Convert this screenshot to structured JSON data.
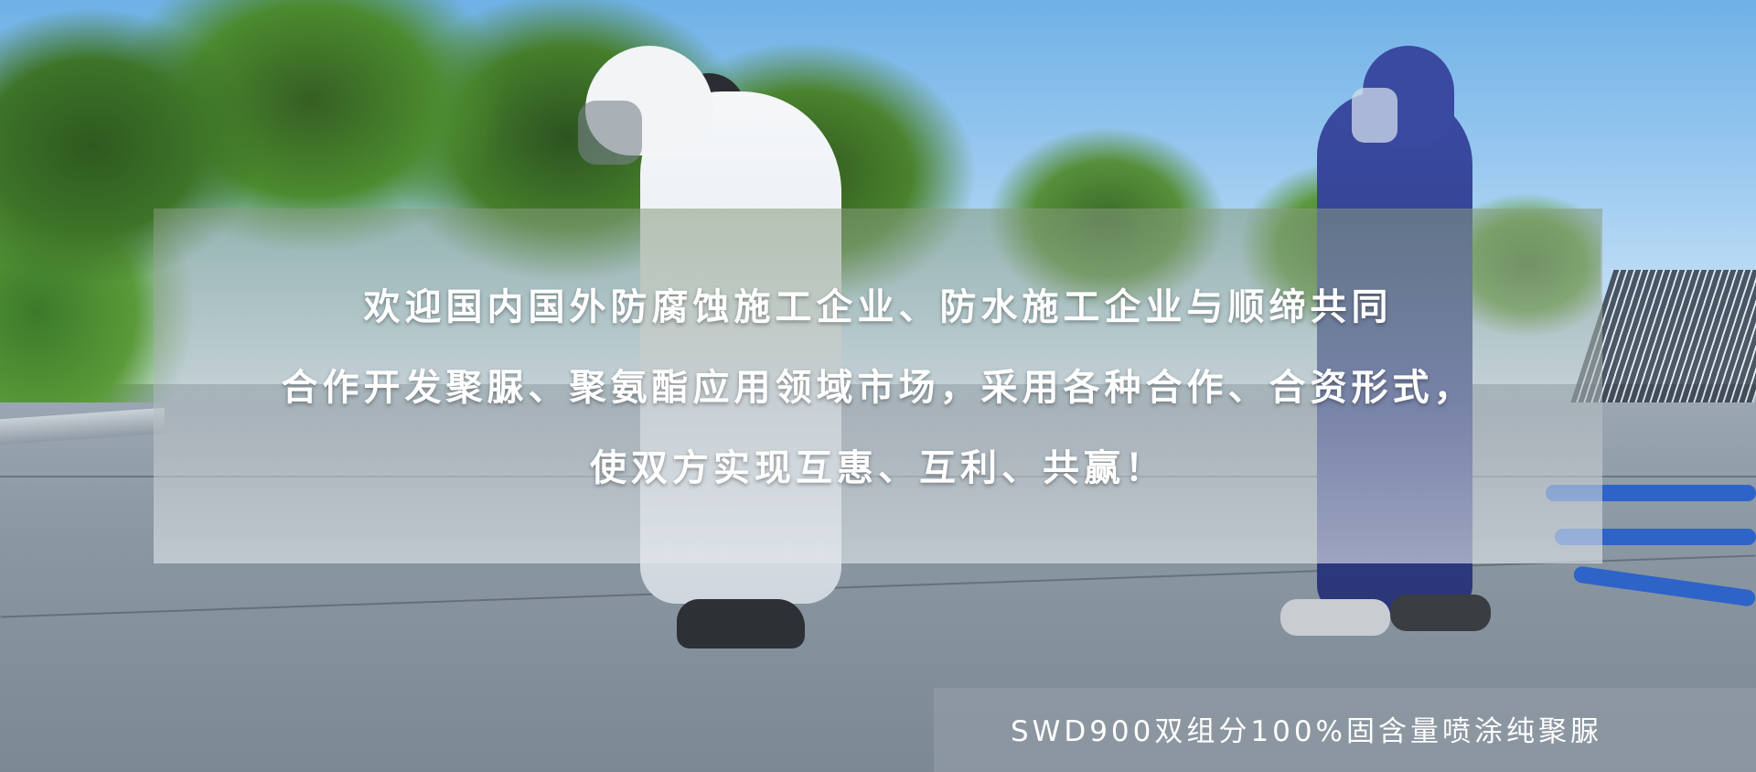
{
  "banner": {
    "headline_lines": [
      "欢迎国内国外防腐蚀施工企业、防水施工企业与顺缔共同",
      "合作开发聚脲、聚氨酯应用领域市场，采用各种合作、合资形式，",
      "使双方实现互惠、互利、共赢！"
    ],
    "caption": "SWD900双组分100%固含量喷涂纯聚脲"
  },
  "colors": {
    "overlay_text": "#ffffff",
    "caption_text": "#ffffff",
    "hose_blue": "#2e63c8",
    "suit_blue": "#3a4aa0",
    "suit_white": "#f2f4f6"
  }
}
